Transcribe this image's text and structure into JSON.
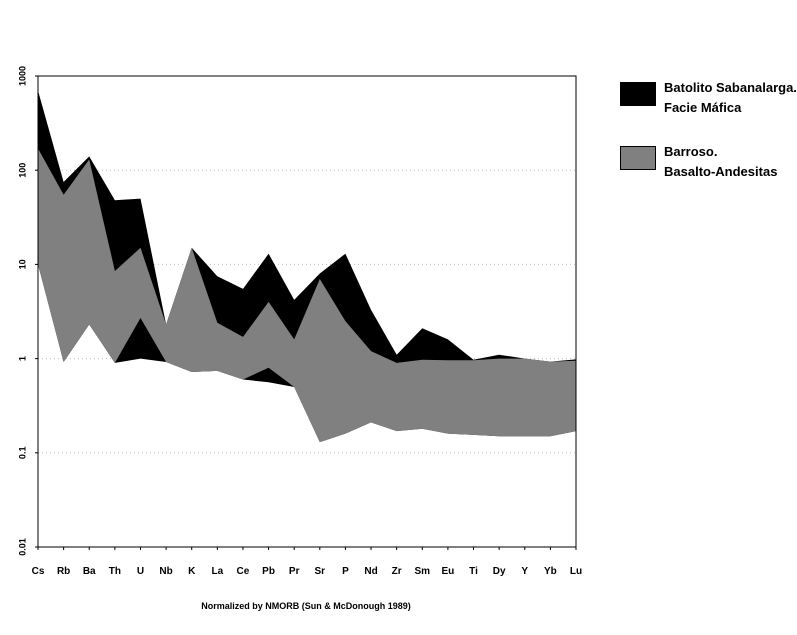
{
  "chart_data": {
    "type": "area",
    "title": "",
    "xlabel": "Normalized by NMORB (Sun & McDonough 1989)",
    "ylabel": "",
    "yscale": "log",
    "ylim": [
      0.01,
      1000
    ],
    "ytick_labels": [
      "0.01",
      "0.1",
      "1",
      "10",
      "100",
      "1000"
    ],
    "grid": "horizontal dotted",
    "legend_position": "right",
    "categories": [
      "Cs",
      "Rb",
      "Ba",
      "Th",
      "U",
      "Nb",
      "K",
      "La",
      "Ce",
      "Pb",
      "Pr",
      "Sr",
      "P",
      "Nd",
      "Zr",
      "Sm",
      "Eu",
      "Ti",
      "Dy",
      "Y",
      "Yb",
      "Lu"
    ],
    "series": [
      {
        "name_lines": [
          "Batolito Sabanalarga.",
          "Facie Máfica"
        ],
        "color": "#000000",
        "upper": [
          700,
          75,
          140,
          48,
          50,
          2.3,
          15,
          7.5,
          5.5,
          13,
          4.2,
          8,
          13,
          3.3,
          1.1,
          2.1,
          1.6,
          0.97,
          1.1,
          1.0,
          0.93,
          0.98
        ],
        "lower": [
          10,
          0.92,
          2.3,
          0.9,
          1.0,
          0.92,
          0.72,
          0.74,
          0.6,
          0.56,
          0.5,
          0.13,
          0.16,
          0.21,
          0.17,
          0.18,
          0.16,
          0.155,
          0.15,
          0.15,
          0.15,
          0.17
        ]
      },
      {
        "name_lines": [
          "Barroso.",
          "Basalto-Andesitas"
        ],
        "color": "#808080",
        "upper": [
          170,
          55,
          130,
          8.5,
          15,
          2.3,
          15,
          2.4,
          1.7,
          4,
          1.6,
          7,
          2.5,
          1.2,
          0.9,
          0.97,
          0.96,
          0.96,
          1.0,
          1.0,
          0.93,
          0.95
        ],
        "lower": [
          10,
          0.92,
          2.3,
          0.9,
          2.7,
          0.92,
          0.72,
          0.74,
          0.6,
          0.8,
          0.5,
          0.13,
          0.16,
          0.21,
          0.17,
          0.18,
          0.16,
          0.155,
          0.15,
          0.15,
          0.15,
          0.17
        ]
      }
    ]
  }
}
